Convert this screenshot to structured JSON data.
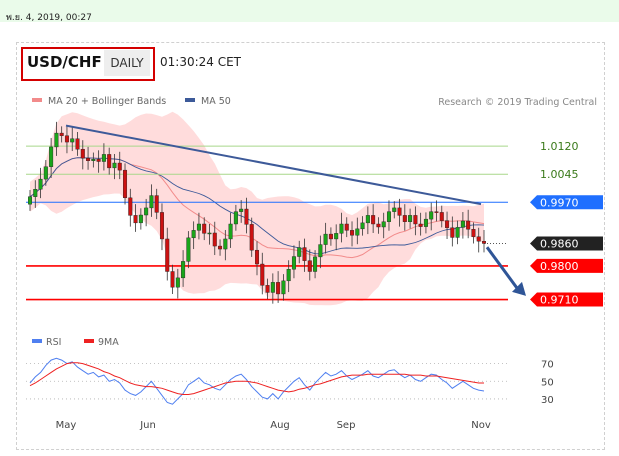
{
  "header": {
    "datetime": "พ.ย. 4, 2019, 00:27",
    "pair": "USD/CHF",
    "timeframe": "DAILY",
    "time": "01:30:24 CET",
    "watermark": "Research © 2019 Trading Central"
  },
  "chart_data": [
    {
      "type": "line",
      "title": "",
      "legend": [
        {
          "name": "MA 20 + Bollinger Bands",
          "color": "#f28b8b"
        },
        {
          "name": "MA 50",
          "color": "#3d5a99"
        }
      ],
      "x_tick_labels": [
        "May",
        "Jun",
        "Aug",
        "Sep",
        "Nov"
      ],
      "y_range": [
        0.965,
        1.019
      ],
      "levels": [
        {
          "label": "1.0120",
          "value": 1.012,
          "kind": "resistance",
          "color": "#a8d78a"
        },
        {
          "label": "1.0045",
          "value": 1.0045,
          "kind": "resistance",
          "color": "#a8d78a"
        },
        {
          "label": "0.9970",
          "value": 0.997,
          "kind": "pivot",
          "color": "#1f6fff"
        },
        {
          "label": "0.9860",
          "value": 0.986,
          "kind": "last-price",
          "color": "#222222"
        },
        {
          "label": "0.9800",
          "value": 0.98,
          "kind": "support",
          "color": "#ff0000"
        },
        {
          "label": "0.9710",
          "value": 0.971,
          "kind": "support",
          "color": "#ff0000"
        }
      ],
      "trendline": {
        "start": [
          "May",
          1.0175
        ],
        "end": [
          "Nov",
          0.9965
        ]
      },
      "forecast_arrow": {
        "from": 0.985,
        "to": 0.972,
        "direction": "down"
      },
      "close_series": [
        0.9985,
        1.0005,
        1.0032,
        1.0065,
        1.0118,
        1.0155,
        1.0148,
        1.0131,
        1.014,
        1.0112,
        1.0088,
        1.0081,
        1.0085,
        1.0079,
        1.0098,
        1.0062,
        1.0075,
        1.0056,
        0.9982,
        0.9935,
        0.9915,
        0.9936,
        0.9955,
        0.9988,
        0.9943,
        0.9872,
        0.9785,
        0.9743,
        0.9768,
        0.9812,
        0.9875,
        0.9895,
        0.9912,
        0.9887,
        0.9888,
        0.9853,
        0.9845,
        0.9872,
        0.9912,
        0.9945,
        0.9952,
        0.9911,
        0.9842,
        0.9805,
        0.9748,
        0.9729,
        0.9756,
        0.9725,
        0.976,
        0.9791,
        0.9825,
        0.9849,
        0.9814,
        0.9785,
        0.9824,
        0.9857,
        0.9885,
        0.9872,
        0.9887,
        0.9912,
        0.9895,
        0.9882,
        0.9899,
        0.9915,
        0.9935,
        0.9912,
        0.9904,
        0.9918,
        0.9945,
        0.9955,
        0.9935,
        0.9918,
        0.9935,
        0.9912,
        0.9905,
        0.9925,
        0.9945,
        0.9943,
        0.9921,
        0.9902,
        0.9876,
        0.9903,
        0.992,
        0.9898,
        0.9878,
        0.9866,
        0.986
      ]
    },
    {
      "type": "line",
      "title": "",
      "legend": [
        {
          "name": "RSI",
          "color": "#4f7ff0"
        },
        {
          "name": "9MA",
          "color": "#ee2222"
        }
      ],
      "y_tick_labels": [
        "70",
        "50",
        "30"
      ],
      "y_range": [
        22,
        82
      ],
      "rsi": [
        48,
        55,
        60,
        68,
        74,
        76,
        74,
        70,
        72,
        66,
        62,
        58,
        60,
        55,
        57,
        50,
        52,
        48,
        40,
        36,
        34,
        38,
        44,
        50,
        42,
        34,
        26,
        24,
        30,
        36,
        46,
        50,
        54,
        48,
        46,
        42,
        40,
        46,
        52,
        56,
        58,
        52,
        44,
        38,
        32,
        30,
        36,
        30,
        38,
        44,
        50,
        54,
        46,
        40,
        48,
        54,
        60,
        56,
        58,
        62,
        56,
        52,
        55,
        58,
        62,
        56,
        54,
        58,
        62,
        63,
        58,
        54,
        57,
        52,
        50,
        54,
        58,
        57,
        52,
        48,
        42,
        46,
        50,
        46,
        42,
        40,
        39
      ],
      "ma9": [
        45,
        48,
        52,
        56,
        60,
        64,
        67,
        70,
        71,
        71,
        70,
        68,
        66,
        64,
        61,
        59,
        56,
        54,
        51,
        48,
        46,
        45,
        44,
        44,
        43,
        42,
        40,
        38,
        36,
        35,
        35,
        36,
        38,
        40,
        42,
        44,
        46,
        48,
        49,
        50,
        50,
        50,
        49,
        48,
        46,
        44,
        42,
        40,
        39,
        38,
        39,
        41,
        42,
        44,
        46,
        47,
        49,
        51,
        53,
        55,
        56,
        57,
        57,
        57,
        58,
        58,
        58,
        58,
        58,
        58,
        58,
        58,
        57,
        57,
        57,
        56,
        56,
        56,
        55,
        54,
        53,
        52,
        51,
        50,
        49,
        48,
        48
      ]
    }
  ]
}
